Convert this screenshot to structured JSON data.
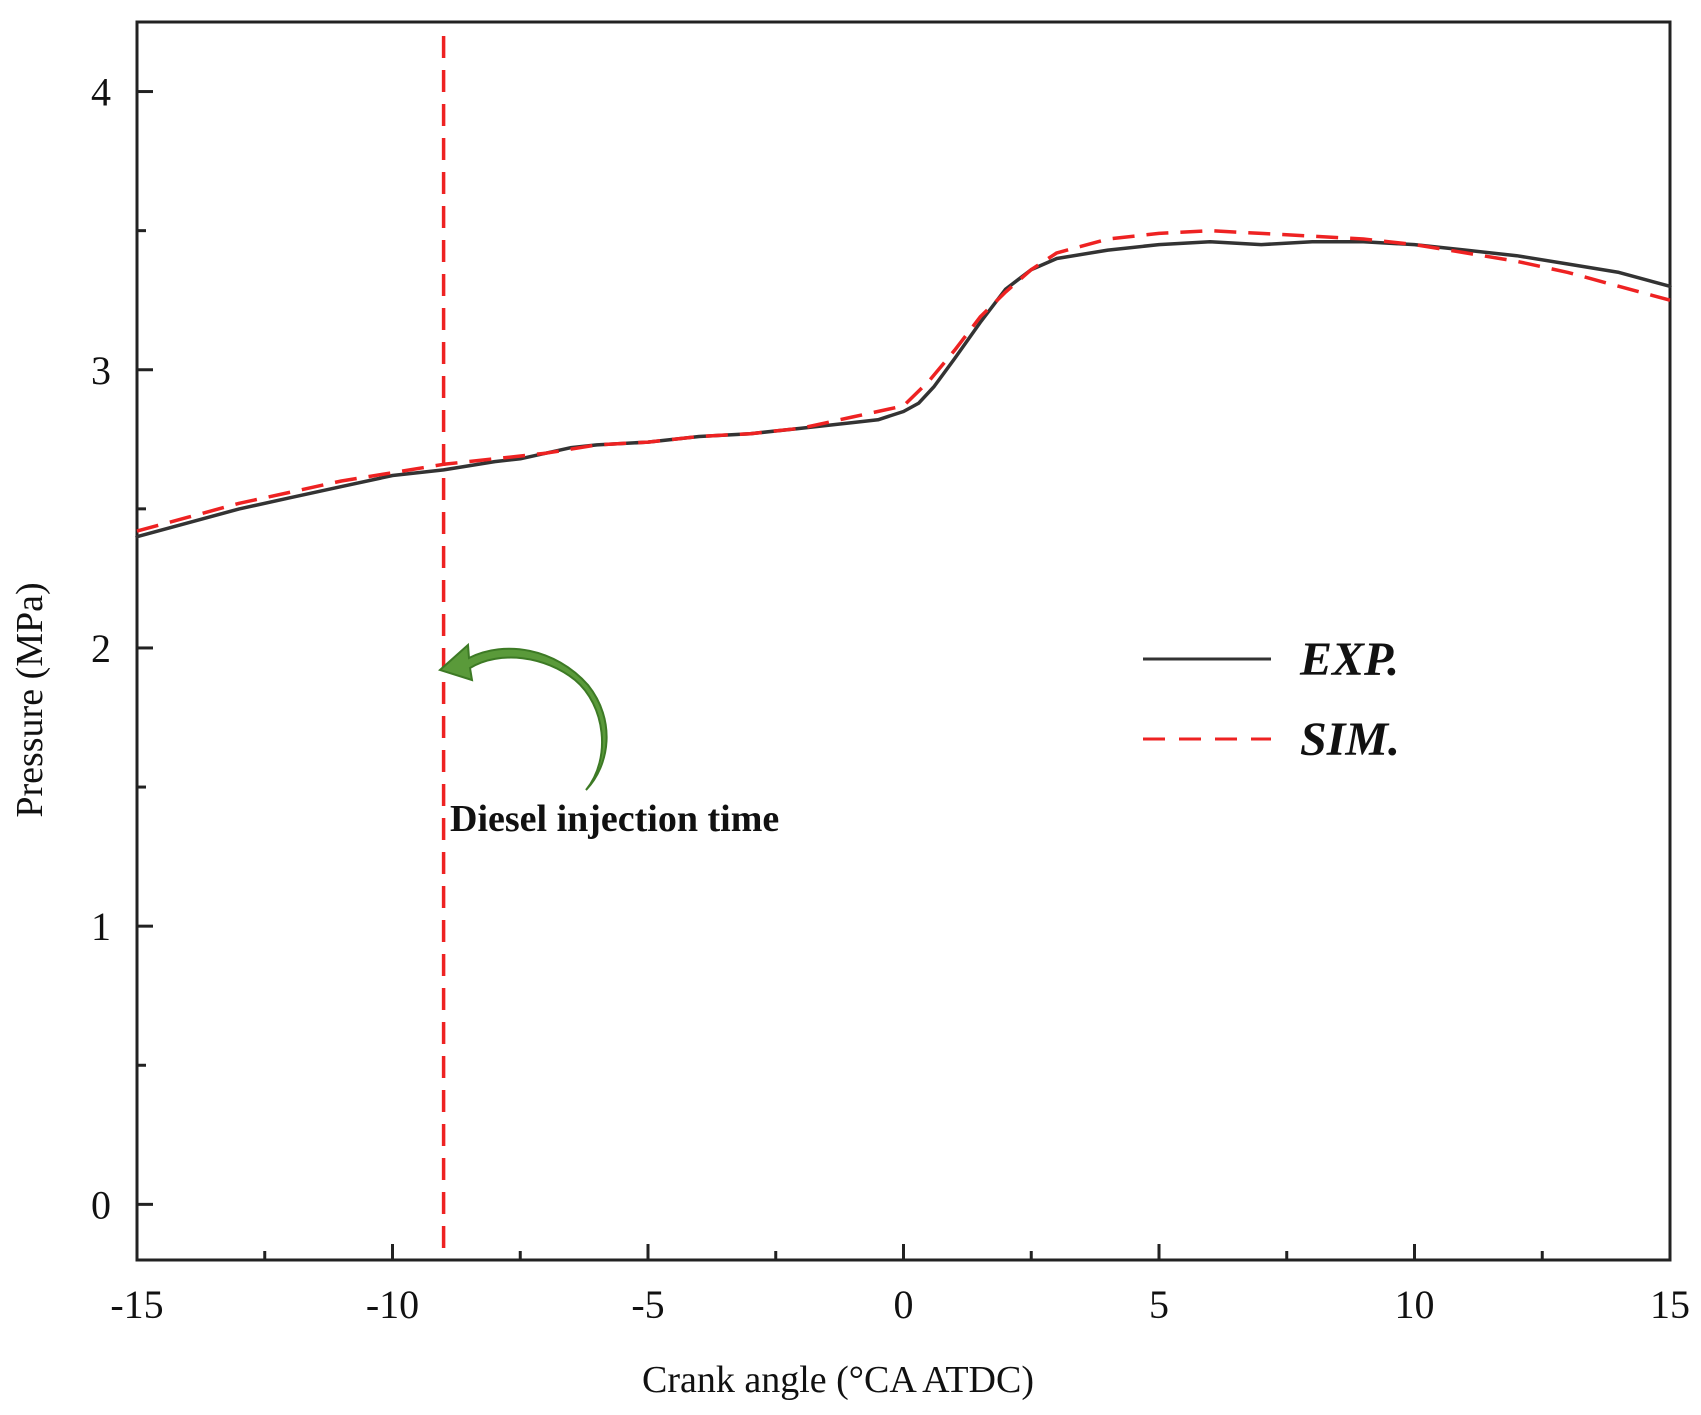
{
  "chart_data": {
    "type": "line",
    "title": "",
    "xlabel": "Crank angle (°CA ATDC)",
    "ylabel": "Pressure (MPa)",
    "xlim": [
      -15,
      15
    ],
    "ylim": [
      -0.2,
      4.25
    ],
    "x_ticks": [
      -15,
      -10,
      -5,
      0,
      5,
      10,
      15
    ],
    "x_tick_labels": [
      "-15",
      "-10",
      "-5",
      "0",
      "5",
      "10",
      "15"
    ],
    "y_ticks": [
      0,
      1,
      2,
      3,
      4
    ],
    "y_tick_labels": [
      "0",
      "1",
      "2",
      "3",
      "4"
    ],
    "grid": false,
    "legend_position": "center-right",
    "series": [
      {
        "name": "EXP.",
        "style": "solid",
        "color": "#333333",
        "x": [
          -15,
          -14,
          -13,
          -12,
          -11,
          -10,
          -9,
          -8,
          -7.5,
          -7,
          -6.5,
          -6,
          -5,
          -4,
          -3,
          -2,
          -1,
          -0.5,
          0,
          0.3,
          0.6,
          1,
          1.5,
          2,
          2.5,
          3,
          4,
          5,
          6,
          7,
          8,
          9,
          10,
          11,
          12,
          13,
          14,
          15
        ],
        "values": [
          2.4,
          2.45,
          2.5,
          2.54,
          2.58,
          2.62,
          2.64,
          2.67,
          2.68,
          2.7,
          2.72,
          2.73,
          2.74,
          2.76,
          2.77,
          2.79,
          2.81,
          2.82,
          2.85,
          2.88,
          2.94,
          3.04,
          3.17,
          3.29,
          3.36,
          3.4,
          3.43,
          3.45,
          3.46,
          3.45,
          3.46,
          3.46,
          3.45,
          3.43,
          3.41,
          3.38,
          3.35,
          3.3
        ]
      },
      {
        "name": "SIM.",
        "style": "dashed",
        "color": "#ee2222",
        "x": [
          -15,
          -14,
          -13,
          -12,
          -11,
          -10,
          -9,
          -8,
          -7,
          -6,
          -5,
          -4,
          -3,
          -2,
          -1,
          0,
          0.5,
          1,
          1.5,
          2,
          2.5,
          3,
          4,
          5,
          6,
          7,
          8,
          9,
          10,
          11,
          12,
          13,
          14,
          15
        ],
        "values": [
          2.42,
          2.47,
          2.52,
          2.56,
          2.6,
          2.63,
          2.66,
          2.68,
          2.7,
          2.73,
          2.74,
          2.76,
          2.77,
          2.79,
          2.83,
          2.87,
          2.96,
          3.07,
          3.19,
          3.28,
          3.36,
          3.42,
          3.47,
          3.49,
          3.5,
          3.49,
          3.48,
          3.47,
          3.45,
          3.42,
          3.39,
          3.35,
          3.3,
          3.25
        ]
      }
    ],
    "annotations": {
      "injection_line_x": -9,
      "injection_label": "Diesel injection time"
    },
    "colors": {
      "axis": "#222222",
      "exp": "#333333",
      "sim": "#ee2222",
      "arrow": "#5a9a3a"
    }
  }
}
